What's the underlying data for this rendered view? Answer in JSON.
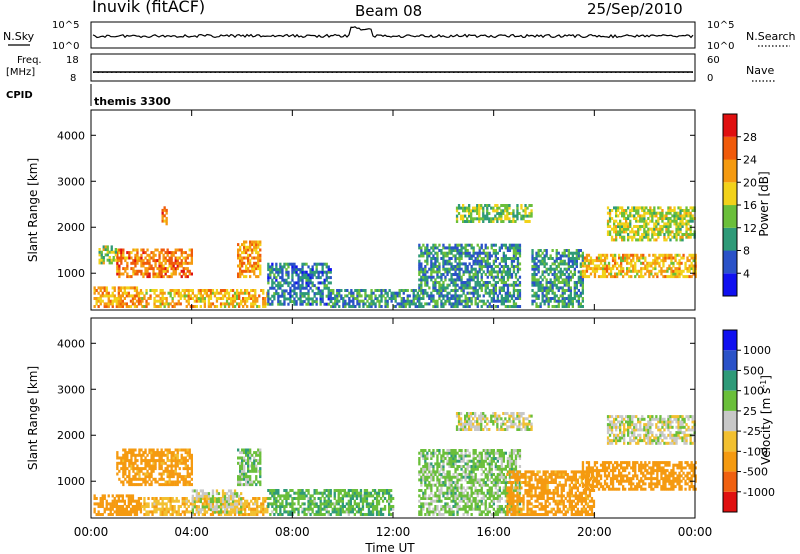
{
  "header": {
    "station": "Inuvik (fitACF)",
    "beam": "Beam 08",
    "date": "25/Sep/2010"
  },
  "summary": {
    "nsky_label": "N.Sky",
    "nsky_ticks": [
      "10^5",
      "10^0"
    ],
    "nsearch_label": "N.Search",
    "nsearch_ticks": [
      "10^5",
      "10^0"
    ],
    "freq_label_1": "Freq.",
    "freq_label_2": "[MHz]",
    "freq_ticks": [
      "18",
      "8"
    ],
    "nave_label": "Nave",
    "nave_ticks": [
      "60",
      "0"
    ],
    "cpid_label": "CPID",
    "cpid_value": "themis 3300"
  },
  "colors": {
    "power": [
      "#1010f0",
      "#2a52c8",
      "#2e9a78",
      "#6abf3a",
      "#f2d21a",
      "#f59a10",
      "#f05a0a",
      "#e01010"
    ],
    "velocity": [
      "#e01010",
      "#f06010",
      "#f59a10",
      "#f2c030",
      "#c8c8c8",
      "#6abf3a",
      "#2e9a78",
      "#2a52c8",
      "#1010f0"
    ]
  },
  "chart_data": [
    {
      "type": "heatmap",
      "name": "power",
      "ylabel": "Slant Range [km]",
      "xlabel": "Time UT",
      "xlim": [
        0,
        24
      ],
      "ylim": [
        200,
        4550
      ],
      "xticks": [
        "00:00",
        "04:00",
        "08:00",
        "12:00",
        "16:00",
        "20:00",
        "00:00"
      ],
      "yticks": [
        1000,
        2000,
        3000,
        4000
      ],
      "colorbar_label": "Power [dB]",
      "colorbar_ticks": [
        "4",
        "8",
        "12",
        "16",
        "20",
        "24",
        "28"
      ],
      "regions": [
        {
          "t": [
            0.1,
            2.0
          ],
          "r": [
            250,
            700
          ],
          "v": 22
        },
        {
          "t": [
            2.0,
            7.0
          ],
          "r": [
            250,
            650
          ],
          "v": 20
        },
        {
          "t": [
            1.0,
            4.0
          ],
          "r": [
            900,
            1500
          ],
          "v": 24
        },
        {
          "t": [
            0.3,
            1.0
          ],
          "r": [
            1200,
            1600
          ],
          "v": 16
        },
        {
          "t": [
            2.8,
            3.0
          ],
          "r": [
            2050,
            2450
          ],
          "v": 24
        },
        {
          "t": [
            5.8,
            6.7
          ],
          "r": [
            900,
            1700
          ],
          "v": 22
        },
        {
          "t": [
            7.0,
            9.5
          ],
          "r": [
            300,
            1200
          ],
          "v": 8
        },
        {
          "t": [
            9.5,
            13.0
          ],
          "r": [
            250,
            600
          ],
          "v": 10
        },
        {
          "t": [
            13.0,
            17.0
          ],
          "r": [
            250,
            1600
          ],
          "v": 10
        },
        {
          "t": [
            14.5,
            17.5
          ],
          "r": [
            2100,
            2500
          ],
          "v": 14
        },
        {
          "t": [
            17.5,
            19.5
          ],
          "r": [
            250,
            1500
          ],
          "v": 10
        },
        {
          "t": [
            19.5,
            24.0
          ],
          "r": [
            900,
            1400
          ],
          "v": 20
        },
        {
          "t": [
            20.5,
            24.0
          ],
          "r": [
            1700,
            2400
          ],
          "v": 16
        }
      ]
    },
    {
      "type": "heatmap",
      "name": "velocity",
      "ylabel": "Slant Range [km]",
      "xlabel": "Time UT",
      "xlim": [
        0,
        24
      ],
      "ylim": [
        200,
        4550
      ],
      "xticks": [
        "00:00",
        "04:00",
        "08:00",
        "12:00",
        "16:00",
        "20:00",
        "00:00"
      ],
      "yticks": [
        1000,
        2000,
        3000,
        4000
      ],
      "colorbar_label": "Velocity [m s^-1]",
      "colorbar_ticks": [
        "1000",
        "500",
        "100",
        "25",
        "-25",
        "-100",
        "-500",
        "-1000"
      ],
      "regions": [
        {
          "t": [
            0.1,
            2.0
          ],
          "r": [
            250,
            700
          ],
          "v": -200
        },
        {
          "t": [
            2.0,
            7.0
          ],
          "r": [
            250,
            650
          ],
          "v": -80
        },
        {
          "t": [
            1.0,
            4.0
          ],
          "r": [
            900,
            1700
          ],
          "v": -150
        },
        {
          "t": [
            4.0,
            6.0
          ],
          "r": [
            300,
            800
          ],
          "v": 0
        },
        {
          "t": [
            5.8,
            6.7
          ],
          "r": [
            900,
            1700
          ],
          "v": 60
        },
        {
          "t": [
            7.0,
            12.0
          ],
          "r": [
            250,
            800
          ],
          "v": 80
        },
        {
          "t": [
            13.0,
            17.0
          ],
          "r": [
            250,
            1700
          ],
          "v": 50
        },
        {
          "t": [
            14.5,
            17.5
          ],
          "r": [
            2100,
            2500
          ],
          "v": 0
        },
        {
          "t": [
            16.5,
            20.0
          ],
          "r": [
            250,
            1200
          ],
          "v": -150
        },
        {
          "t": [
            19.5,
            24.0
          ],
          "r": [
            800,
            1400
          ],
          "v": -200
        },
        {
          "t": [
            20.5,
            24.0
          ],
          "r": [
            1800,
            2400
          ],
          "v": 0
        }
      ]
    }
  ]
}
